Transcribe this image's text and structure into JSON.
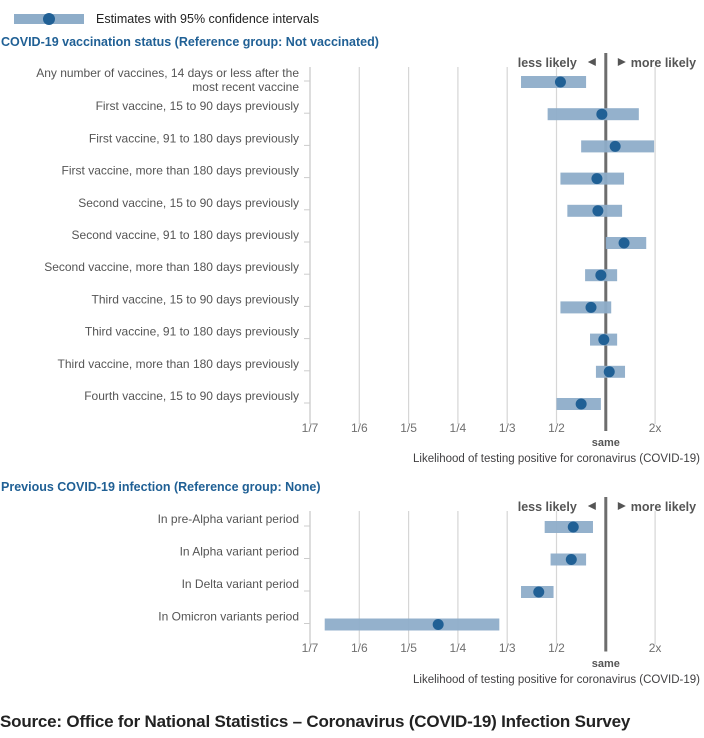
{
  "legend": {
    "label": "Estimates with 95% confidence intervals",
    "bar_color": "#8eadc9",
    "dot_color": "#206095"
  },
  "source": "Source: Office for National Statistics – Coronavirus (COVID-19) Infection Survey",
  "chart_data": [
    {
      "type": "scatter",
      "subtype": "forest-plot",
      "title": "COVID-19 vaccination status (Reference group: Not vaccinated)",
      "xlabel": "Likelihood of testing positive for coronavirus (COVID-19)",
      "x_scale": "ordinal-ratio",
      "x_ticks": [
        "1/7",
        "1/6",
        "1/5",
        "1/4",
        "1/3",
        "1/2",
        "same",
        "2x"
      ],
      "x_tick_values": [
        0.1429,
        0.1667,
        0.2,
        0.25,
        0.3333,
        0.5,
        1,
        2
      ],
      "reference_value": 1,
      "reference_label": "same",
      "direction_labels": {
        "left": "less likely",
        "right": "more likely"
      },
      "grid": true,
      "categories": [
        "Any number of vaccines, 14 days or less after the most recent vaccine",
        "First vaccine, 15 to 90 days previously",
        "First vaccine, 91 to 180 days previously",
        "First vaccine, more than 180 days previously",
        "Second vaccine, 15 to 90 days previously",
        "Second vaccine, 91 to 180 days previously",
        "Second vaccine, more than 180 days previously",
        "Third vaccine, 15 to 90 days previously",
        "Third vaccine, 91 to 180 days previously",
        "Third vaccine, more than 180 days previously",
        "Fourth vaccine, 15 to 90 days previously"
      ],
      "category_lines": [
        [
          "Any number of vaccines, 14 days or less after the",
          "most recent vaccine"
        ],
        [
          "First vaccine, 15 to 90 days previously"
        ],
        [
          "First vaccine, 91 to 180 days previously"
        ],
        [
          "First vaccine, more than 180 days previously"
        ],
        [
          "Second vaccine, 15 to 90 days previously"
        ],
        [
          "Second vaccine, 91 to 180 days previously"
        ],
        [
          "Second vaccine, more than 180 days previously"
        ],
        [
          "Third vaccine, 15 to 90 days previously"
        ],
        [
          "Third vaccine, 91 to 180 days previously"
        ],
        [
          "Third vaccine, more than 180 days previously"
        ],
        [
          "Fourth vaccine, 15 to 90 days previously"
        ]
      ],
      "series": [
        {
          "name": "estimate",
          "values": [
            0.54,
            0.96,
            1.19,
            0.91,
            0.92,
            1.37,
            0.95,
            0.85,
            0.98,
            1.07,
            0.75
          ]
        },
        {
          "name": "lower_95",
          "values": [
            0.38,
            0.47,
            0.75,
            0.54,
            0.61,
            1.0,
            0.79,
            0.54,
            0.84,
            0.9,
            0.5
          ]
        },
        {
          "name": "upper_95",
          "values": [
            0.8,
            1.67,
            1.98,
            1.37,
            1.33,
            1.82,
            1.23,
            1.11,
            1.23,
            1.39,
            0.95
          ]
        }
      ]
    },
    {
      "type": "scatter",
      "subtype": "forest-plot",
      "title": "Previous COVID-19 infection (Reference group: None)",
      "xlabel": "Likelihood of testing positive for coronavirus (COVID-19)",
      "x_scale": "ordinal-ratio",
      "x_ticks": [
        "1/7",
        "1/6",
        "1/5",
        "1/4",
        "1/3",
        "1/2",
        "same",
        "2x"
      ],
      "x_tick_values": [
        0.1429,
        0.1667,
        0.2,
        0.25,
        0.3333,
        0.5,
        1,
        2
      ],
      "reference_value": 1,
      "reference_label": "same",
      "direction_labels": {
        "left": "less likely",
        "right": "more likely"
      },
      "grid": true,
      "categories": [
        "In pre-Alpha variant period",
        "In Alpha variant period",
        "In Delta variant period",
        "In Omicron variants period"
      ],
      "category_lines": [
        [
          "In pre-Alpha variant period"
        ],
        [
          "In Alpha variant period"
        ],
        [
          "In Delta variant period"
        ],
        [
          "In Omicron variants period"
        ]
      ],
      "series": [
        {
          "name": "estimate",
          "values": [
            0.67,
            0.65,
            0.44,
            0.23
          ]
        },
        {
          "name": "lower_95",
          "values": [
            0.46,
            0.48,
            0.38,
            0.15
          ]
        },
        {
          "name": "upper_95",
          "values": [
            0.87,
            0.8,
            0.49,
            0.32
          ]
        }
      ]
    }
  ]
}
